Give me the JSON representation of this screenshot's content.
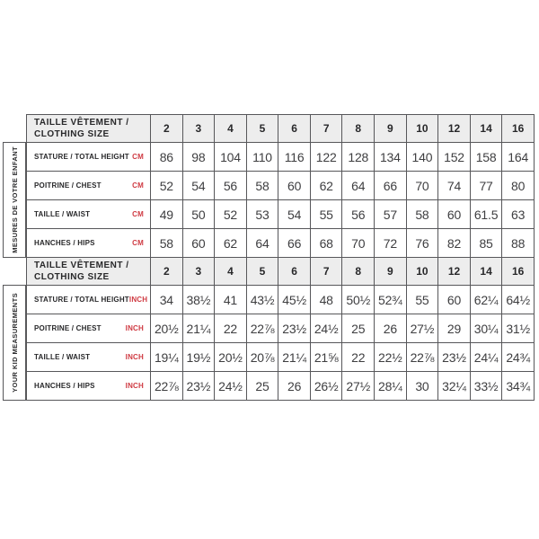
{
  "colors": {
    "accent_red": "#cf3a42",
    "header_bg": "#ededed",
    "border": "#57575a",
    "text": "#3e3e40"
  },
  "chart_data": {
    "type": "table",
    "title": "TAILLE VÊTEMENT / CLOTHING SIZE",
    "size_header": {
      "line1": "TAILLE VÊTEMENT /",
      "line2": "CLOTHING SIZE"
    },
    "sizes": [
      "2",
      "3",
      "4",
      "5",
      "6",
      "7",
      "8",
      "9",
      "10",
      "12",
      "14",
      "16"
    ],
    "sections": [
      {
        "side_label": "MESURES DE VOTRE ENFANT",
        "unit": "CM",
        "rows": [
          {
            "label": "STATURE / TOTAL HEIGHT",
            "unit": "CM",
            "values": [
              "86",
              "98",
              "104",
              "110",
              "116",
              "122",
              "128",
              "134",
              "140",
              "152",
              "158",
              "164"
            ]
          },
          {
            "label": "POITRINE / CHEST",
            "unit": "CM",
            "values": [
              "52",
              "54",
              "56",
              "58",
              "60",
              "62",
              "64",
              "66",
              "70",
              "74",
              "77",
              "80"
            ]
          },
          {
            "label": "TAILLE / WAIST",
            "unit": "CM",
            "values": [
              "49",
              "50",
              "52",
              "53",
              "54",
              "55",
              "56",
              "57",
              "58",
              "60",
              "61.5",
              "63"
            ]
          },
          {
            "label": "HANCHES / HIPS",
            "unit": "CM",
            "values": [
              "58",
              "60",
              "62",
              "64",
              "66",
              "68",
              "70",
              "72",
              "76",
              "82",
              "85",
              "88"
            ]
          }
        ]
      },
      {
        "side_label": "YOUR KID MEASUREMENTS",
        "unit": "INCH",
        "rows": [
          {
            "label": "STATURE / TOTAL HEIGHT",
            "unit": "INCH",
            "values": [
              "34",
              "38½",
              "41",
              "43½",
              "45½",
              "48",
              "50½",
              "52¾",
              "55",
              "60",
              "62¼",
              "64½"
            ]
          },
          {
            "label": "POITRINE / CHEST",
            "unit": "INCH",
            "values": [
              "20½",
              "21¼",
              "22",
              "22⅞",
              "23½",
              "24½",
              "25",
              "26",
              "27½",
              "29",
              "30¼",
              "31½"
            ]
          },
          {
            "label": "TAILLE / WAIST",
            "unit": "INCH",
            "values": [
              "19¼",
              "19½",
              "20½",
              "20⅞",
              "21¼",
              "21⅝",
              "22",
              "22½",
              "22⅞",
              "23½",
              "24¼",
              "24¾"
            ]
          },
          {
            "label": "HANCHES / HIPS",
            "unit": "INCH",
            "values": [
              "22⅞",
              "23½",
              "24½",
              "25",
              "26",
              "26½",
              "27½",
              "28¼",
              "30",
              "32¼",
              "33½",
              "34¾"
            ]
          }
        ]
      }
    ]
  }
}
